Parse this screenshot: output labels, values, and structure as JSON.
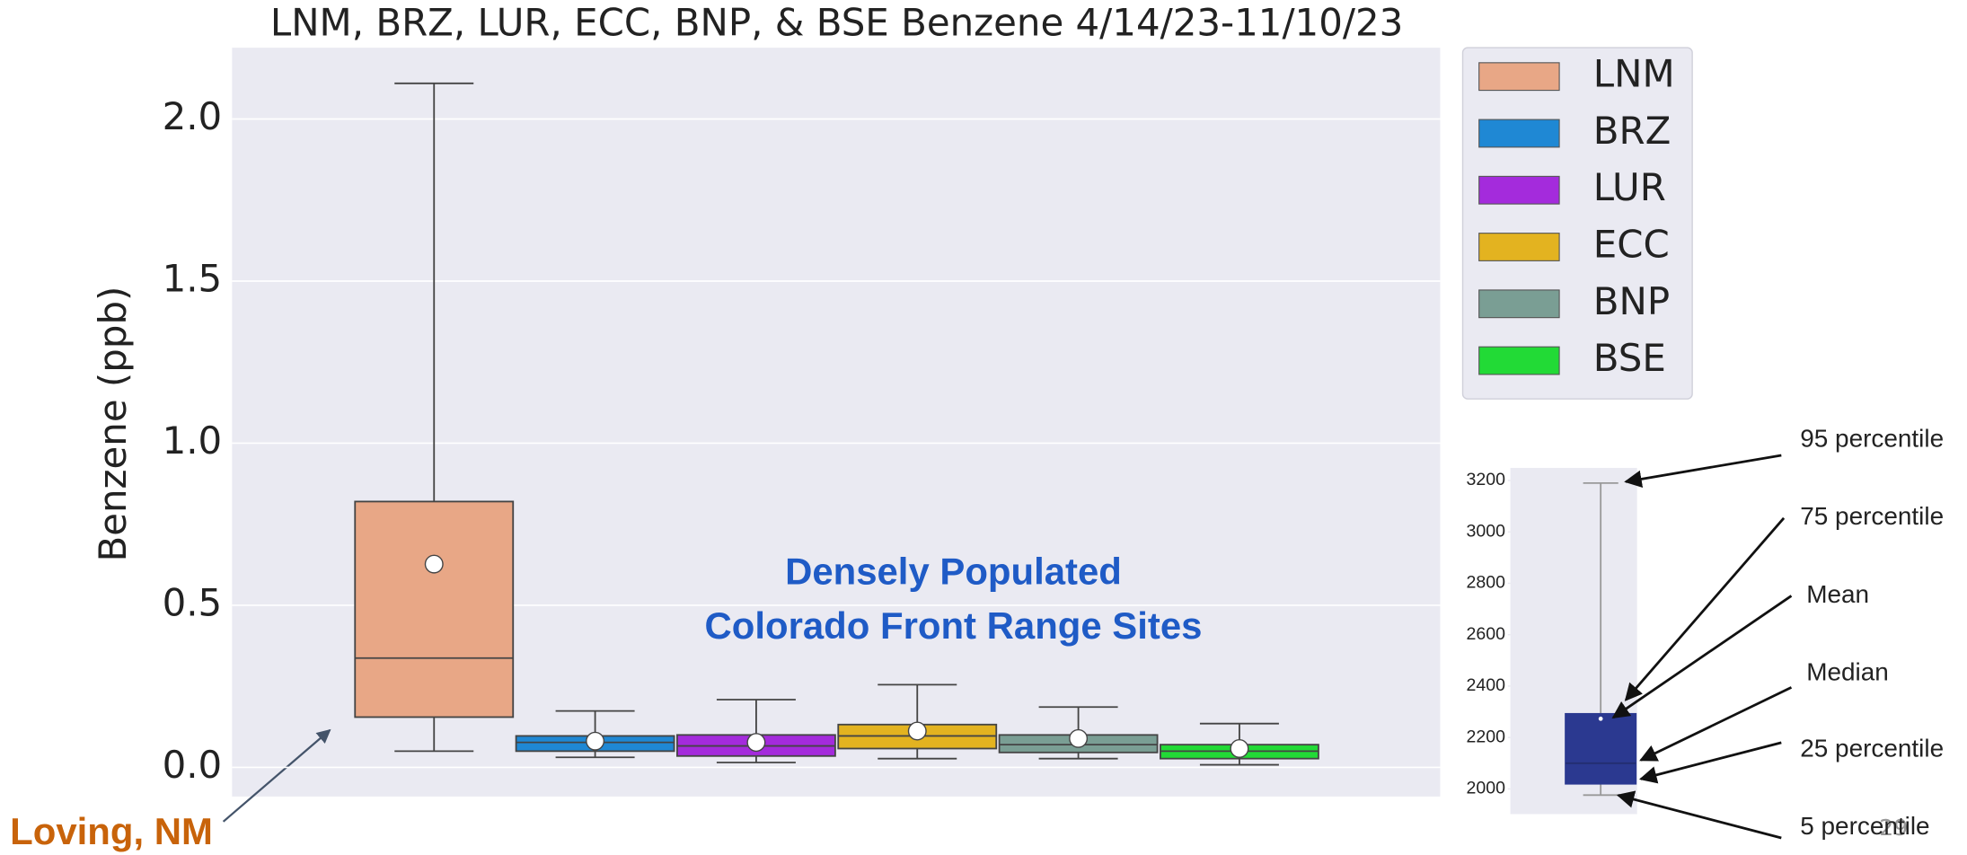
{
  "page_number": "29",
  "chart_data": [
    {
      "type": "box",
      "title": "LNM, BRZ, LUR, ECC, BNP, & BSE Benzene 4/14/23-11/10/23",
      "y_label": "Benzene (ppb)",
      "categories": [
        "LNM",
        "BRZ",
        "LUR",
        "ECC",
        "BNP",
        "BSE"
      ],
      "colors": [
        "#e8a786",
        "#1f88d4",
        "#a42bdc",
        "#e3b320",
        "#7a9e94",
        "#22da36"
      ],
      "whisker_low": [
        0.05,
        0.031,
        0.015,
        0.027,
        0.027,
        0.008
      ],
      "q1": [
        0.155,
        0.05,
        0.035,
        0.058,
        0.046,
        0.027
      ],
      "median": [
        0.337,
        0.077,
        0.066,
        0.097,
        0.07,
        0.05
      ],
      "q3": [
        0.82,
        0.097,
        0.1,
        0.132,
        0.1,
        0.07
      ],
      "whisker_high": [
        2.11,
        0.174,
        0.209,
        0.255,
        0.186,
        0.135
      ],
      "mean": [
        0.627,
        0.081,
        0.077,
        0.112,
        0.089,
        0.058
      ],
      "ylim": [
        -0.09,
        2.22
      ],
      "yticks": [
        {
          "value": 0,
          "label": "0.0"
        },
        0.5,
        {
          "value": 1,
          "label": "1.0"
        },
        1.5,
        {
          "value": 2,
          "label": "2.0"
        }
      ],
      "grid": true,
      "legend": "outside-right",
      "annotations": [
        "Densely Populated",
        "Colorado Front Range Sites",
        "Loving, NM"
      ]
    },
    {
      "type": "box",
      "colors": [
        "#2b3990"
      ],
      "whisker_low": [
        1976
      ],
      "q1": [
        2020
      ],
      "median": [
        2100
      ],
      "q3": [
        2292
      ],
      "whisker_high": [
        3190
      ],
      "mean": [
        2273
      ],
      "ylim": [
        1902,
        3249
      ],
      "yticks": [
        2000,
        2200,
        2400,
        2600,
        2800,
        3000,
        3200
      ],
      "grid": false,
      "annotations": [
        "95 percentile",
        "75 percentile",
        "Mean",
        "Median",
        "25 percentile",
        "5 percentile"
      ]
    }
  ]
}
